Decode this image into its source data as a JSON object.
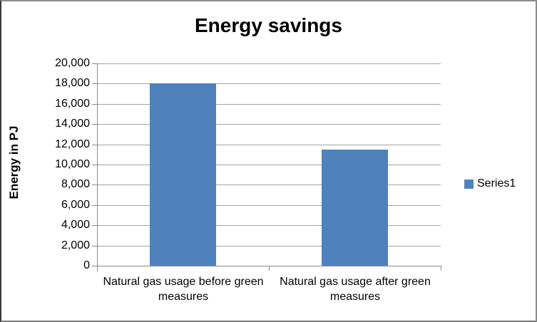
{
  "chart_data": {
    "type": "bar",
    "title": "Energy savings",
    "categories": [
      "Natural gas usage before green measures",
      "Natural gas usage after green measures"
    ],
    "series": [
      {
        "name": "Series1",
        "color": "#4F81BD",
        "values": [
          18000,
          11500
        ]
      }
    ],
    "xlabel": "",
    "ylabel": "Energy in PJ",
    "ylim": [
      0,
      20000
    ],
    "ytick_step": 2000,
    "ytick_labels": [
      "0",
      "2,000",
      "4,000",
      "6,000",
      "8,000",
      "10,000",
      "12,000",
      "14,000",
      "16,000",
      "18,000",
      "20,000"
    ],
    "grid": true,
    "legend_position": "right",
    "colors": {
      "bar": "#4F81BD",
      "gridline": "#a3a3a3",
      "axis": "#8a8a8a",
      "text": "#000000",
      "background": "#ffffff"
    }
  },
  "legend": {
    "entries": [
      {
        "label": "Series1",
        "color": "#4F81BD"
      }
    ]
  }
}
